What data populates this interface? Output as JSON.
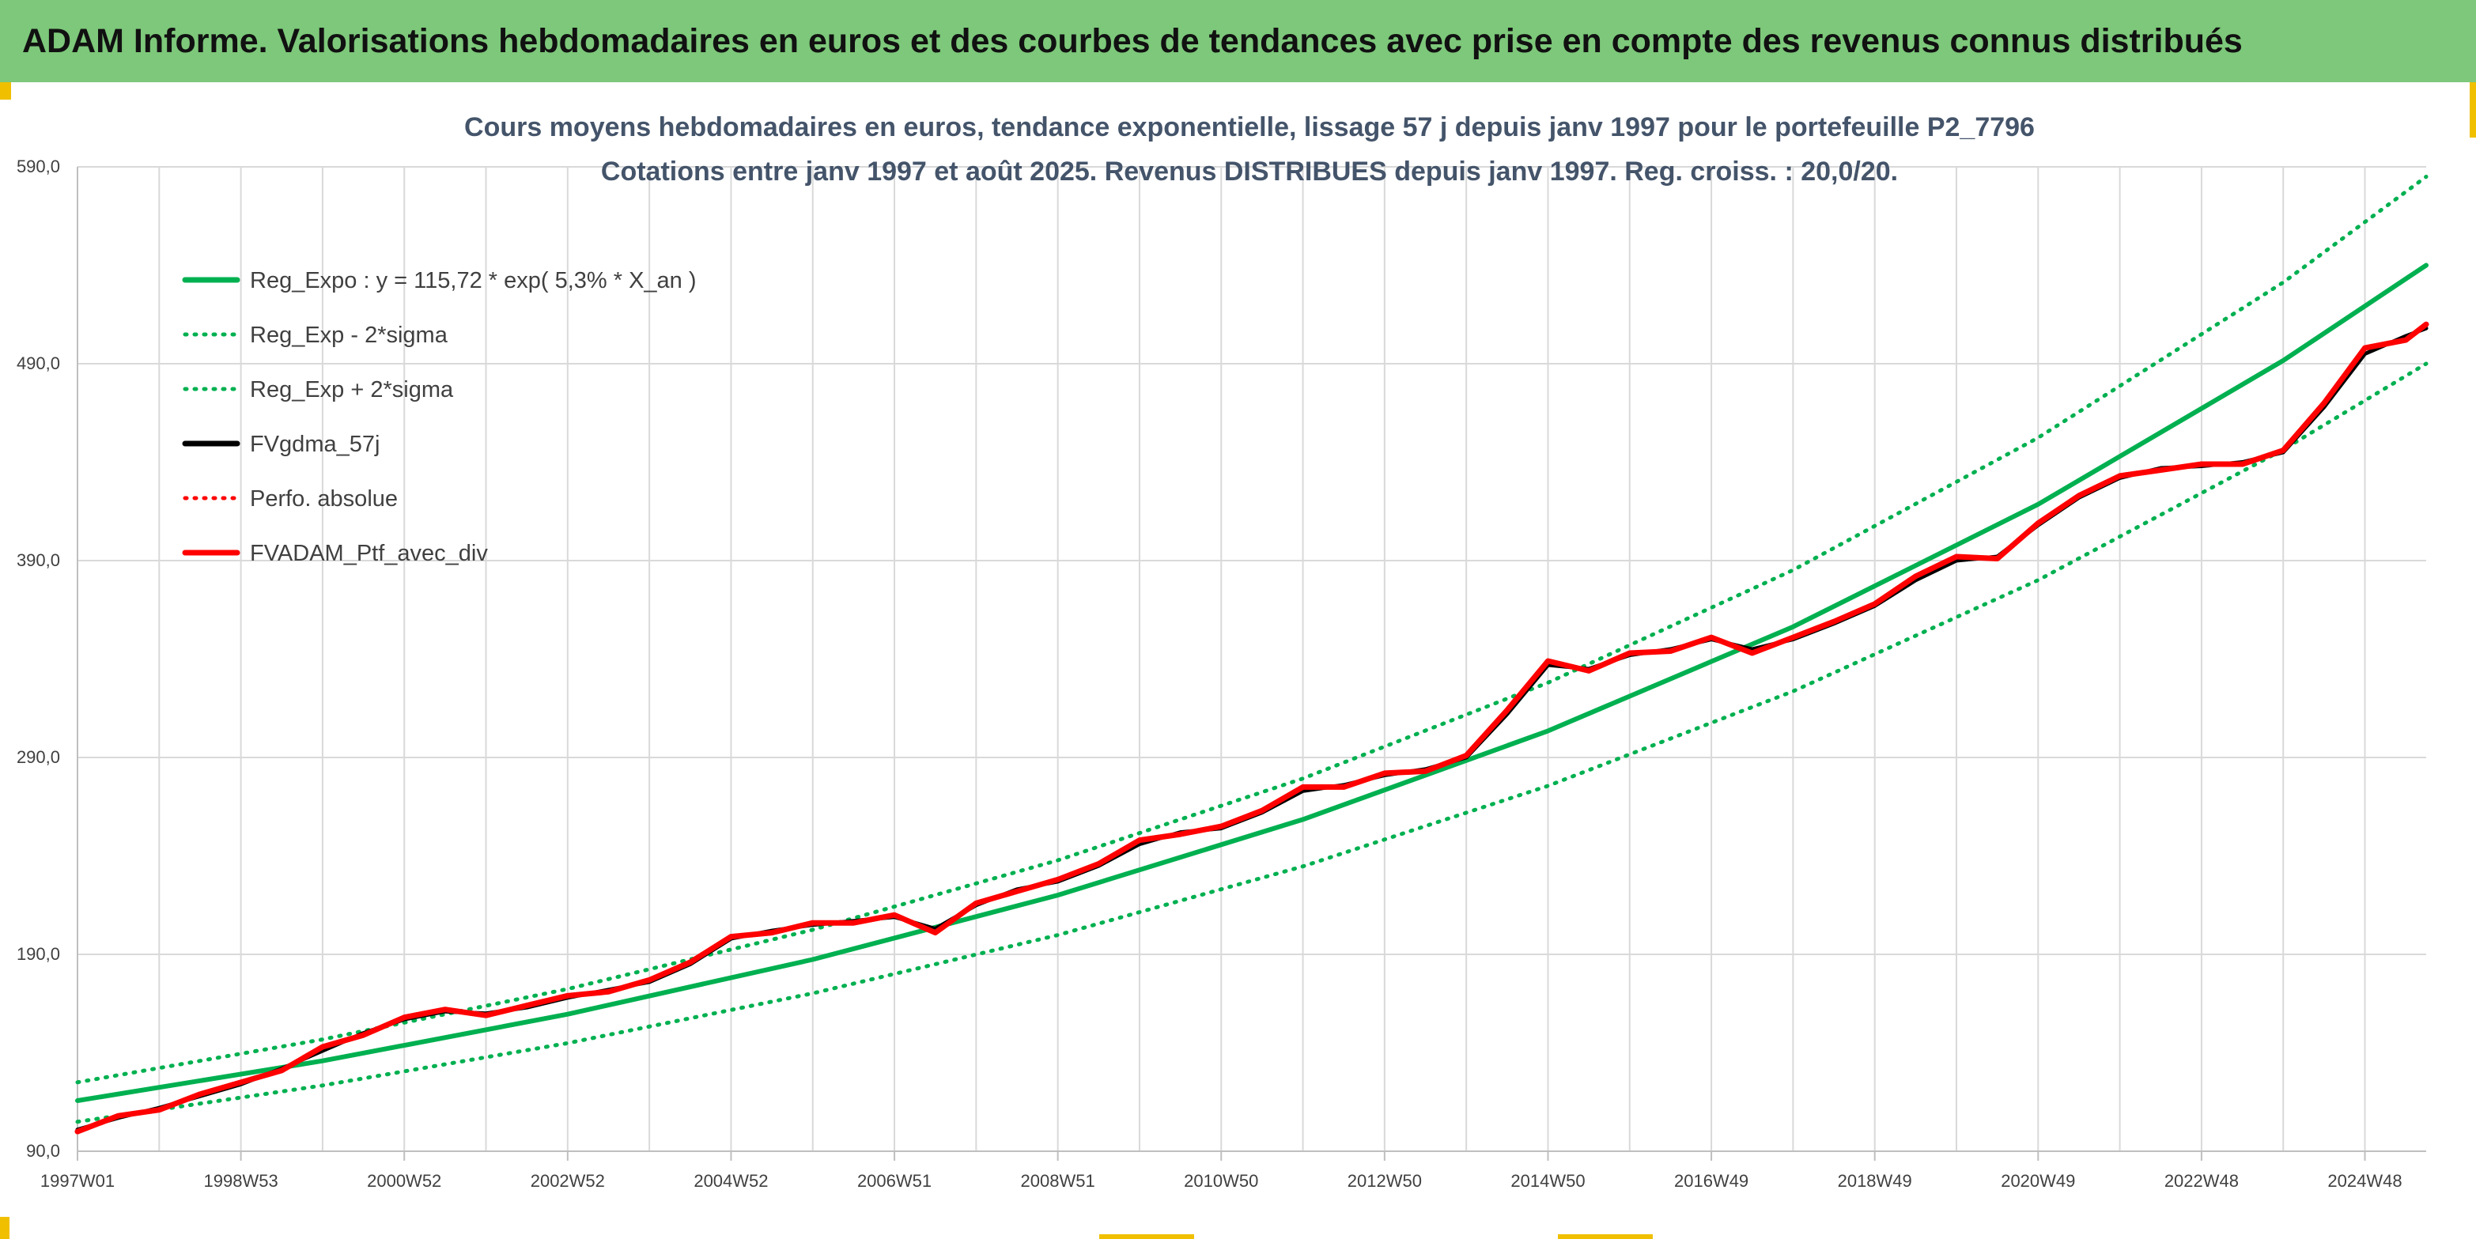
{
  "banner": {
    "title": "ADAM Informe. Valorisations hebdomadaires en euros et des courbes de tendances avec prise en compte des revenus connus distribués"
  },
  "colors": {
    "banner_bg": "#7dc87a",
    "green": "#00b050",
    "red": "#ff0000",
    "black": "#000000",
    "accent": "#f0c000"
  },
  "chart_data": {
    "type": "line",
    "title": "Cours moyens hebdomadaires en euros, tendance exponentielle, lissage 57 j depuis janv 1997 pour le portefeuille P2_7796",
    "subtitle": "Cotations entre janv 1997 et août 2025. Revenus DISTRIBUES depuis janv 1997. Reg. croiss. : 20,0/20.",
    "xlabel": "",
    "ylabel": "",
    "x_ticks": [
      "1997W01",
      "1998W53",
      "2000W52",
      "2002W52",
      "2004W52",
      "2006W51",
      "2008W51",
      "2010W50",
      "2012W50",
      "2014W50",
      "2016W49",
      "2018W49",
      "2020W49",
      "2022W48",
      "2024W48"
    ],
    "x_tick_years": [
      1997.0,
      1999.0,
      2001.0,
      2003.0,
      2005.0,
      2007.0,
      2009.0,
      2011.0,
      2013.0,
      2015.0,
      2017.0,
      2019.0,
      2021.0,
      2023.0,
      2025.0
    ],
    "x_range": [
      1997.0,
      2025.75
    ],
    "y_ticks": [
      "90,0",
      "190,0",
      "290,0",
      "390,0",
      "490,0",
      "590,0"
    ],
    "ylim": [
      90,
      590
    ],
    "grid": true,
    "legend_position": "top-left",
    "series": [
      {
        "name": "Reg_Expo : y = 115,72 * exp( 5,3% *  X_an )",
        "color": "#00b050",
        "style": "solid",
        "x": [
          1997.0,
          2000.0,
          2003.0,
          2006.0,
          2009.0,
          2012.0,
          2015.0,
          2018.0,
          2021.0,
          2024.0,
          2025.75
        ],
        "y": [
          115.7,
          135.9,
          159.6,
          187.4,
          220.1,
          258.5,
          303.5,
          356.4,
          418.6,
          491.6,
          540.0
        ]
      },
      {
        "name": "Reg_Exp - 2*sigma",
        "color": "#00b050",
        "style": "dotted",
        "x": [
          1997.0,
          2000.0,
          2003.0,
          2006.0,
          2009.0,
          2012.0,
          2015.0,
          2018.0,
          2021.0,
          2024.0,
          2025.75
        ],
        "y": [
          105.0,
          123.4,
          144.9,
          170.2,
          199.8,
          234.7,
          275.6,
          323.6,
          380.1,
          446.4,
          490.0
        ]
      },
      {
        "name": "Reg_Exp + 2*sigma",
        "color": "#00b050",
        "style": "dotted",
        "x": [
          1997.0,
          2000.0,
          2003.0,
          2006.0,
          2009.0,
          2012.0,
          2015.0,
          2018.0,
          2021.0,
          2024.0,
          2025.75
        ],
        "y": [
          125.0,
          146.8,
          172.4,
          202.5,
          237.8,
          279.3,
          328.0,
          385.2,
          452.4,
          531.3,
          585.0
        ]
      },
      {
        "name": "FVgdma_57j",
        "color": "#000000",
        "style": "solid",
        "x": [
          1997.0,
          1997.5,
          1998.0,
          1998.5,
          1999.0,
          1999.5,
          2000.0,
          2000.5,
          2001.0,
          2001.5,
          2002.0,
          2002.5,
          2003.0,
          2003.5,
          2004.0,
          2004.5,
          2005.0,
          2005.5,
          2006.0,
          2006.5,
          2007.0,
          2007.5,
          2008.0,
          2008.5,
          2009.0,
          2009.5,
          2010.0,
          2010.5,
          2011.0,
          2011.5,
          2012.0,
          2012.5,
          2013.0,
          2013.5,
          2014.0,
          2014.5,
          2015.0,
          2015.5,
          2016.0,
          2016.5,
          2017.0,
          2017.5,
          2018.0,
          2018.5,
          2019.0,
          2019.5,
          2020.0,
          2020.5,
          2021.0,
          2021.5,
          2022.0,
          2022.5,
          2023.0,
          2023.5,
          2024.0,
          2024.5,
          2025.0,
          2025.5,
          2025.75
        ],
        "y": [
          101,
          107,
          112,
          118,
          124,
          132,
          141,
          150,
          157,
          161,
          160,
          163,
          168,
          172,
          176,
          185,
          198,
          202,
          205,
          207,
          209,
          203,
          215,
          223,
          227,
          235,
          246,
          252,
          254,
          262,
          273,
          276,
          281,
          284,
          290,
          312,
          337,
          335,
          342,
          345,
          350,
          345,
          350,
          358,
          367,
          380,
          390,
          392,
          408,
          422,
          432,
          437,
          438,
          440,
          445,
          468,
          495,
          504,
          508
        ]
      },
      {
        "name": "Perfo. absolue",
        "color": "#ff0000",
        "style": "dotted",
        "x": [
          1997.0,
          1997.5,
          1998.0,
          1998.5,
          1999.0,
          1999.5,
          2000.0,
          2000.5,
          2001.0,
          2001.5,
          2002.0,
          2002.5,
          2003.0,
          2003.5,
          2004.0,
          2004.5,
          2005.0,
          2005.5,
          2006.0,
          2006.5,
          2007.0,
          2007.5,
          2008.0,
          2008.5,
          2009.0,
          2009.5,
          2010.0,
          2010.5,
          2011.0,
          2011.5,
          2012.0,
          2012.5,
          2013.0,
          2013.5,
          2014.0,
          2014.5,
          2015.0,
          2015.5,
          2016.0,
          2016.5,
          2017.0,
          2017.5,
          2018.0,
          2018.5,
          2019.0,
          2019.5,
          2020.0,
          2020.5,
          2021.0,
          2021.5,
          2022.0,
          2022.5,
          2023.0,
          2023.5,
          2024.0,
          2024.5,
          2025.0,
          2025.5,
          2025.75
        ],
        "y": [
          100,
          108,
          111,
          119,
          125,
          131,
          143,
          149,
          158,
          162,
          159,
          164,
          169,
          171,
          177,
          186,
          199,
          201,
          206,
          206,
          210,
          201,
          216,
          222,
          228,
          236,
          248,
          251,
          255,
          263,
          275,
          275,
          282,
          283,
          291,
          314,
          339,
          334,
          343,
          344,
          351,
          343,
          351,
          359,
          368,
          382,
          392,
          391,
          409,
          423,
          433,
          436,
          439,
          439,
          446,
          470,
          498,
          502,
          510
        ]
      },
      {
        "name": "FVADAM_Ptf_avec_div",
        "color": "#ff0000",
        "style": "solid",
        "x": [
          1997.0,
          1997.5,
          1998.0,
          1998.5,
          1999.0,
          1999.5,
          2000.0,
          2000.5,
          2001.0,
          2001.5,
          2002.0,
          2002.5,
          2003.0,
          2003.5,
          2004.0,
          2004.5,
          2005.0,
          2005.5,
          2006.0,
          2006.5,
          2007.0,
          2007.5,
          2008.0,
          2008.5,
          2009.0,
          2009.5,
          2010.0,
          2010.5,
          2011.0,
          2011.5,
          2012.0,
          2012.5,
          2013.0,
          2013.5,
          2014.0,
          2014.5,
          2015.0,
          2015.5,
          2016.0,
          2016.5,
          2017.0,
          2017.5,
          2018.0,
          2018.5,
          2019.0,
          2019.5,
          2020.0,
          2020.5,
          2021.0,
          2021.5,
          2022.0,
          2022.5,
          2023.0,
          2023.5,
          2024.0,
          2024.5,
          2025.0,
          2025.5,
          2025.75
        ],
        "y": [
          100,
          108,
          111,
          119,
          125,
          131,
          143,
          149,
          158,
          162,
          159,
          164,
          169,
          171,
          177,
          186,
          199,
          201,
          206,
          206,
          210,
          201,
          216,
          222,
          228,
          236,
          248,
          251,
          255,
          263,
          275,
          275,
          282,
          283,
          291,
          314,
          339,
          334,
          343,
          344,
          351,
          343,
          351,
          359,
          368,
          382,
          392,
          391,
          409,
          423,
          433,
          436,
          439,
          439,
          446,
          470,
          498,
          502,
          510
        ]
      }
    ]
  }
}
